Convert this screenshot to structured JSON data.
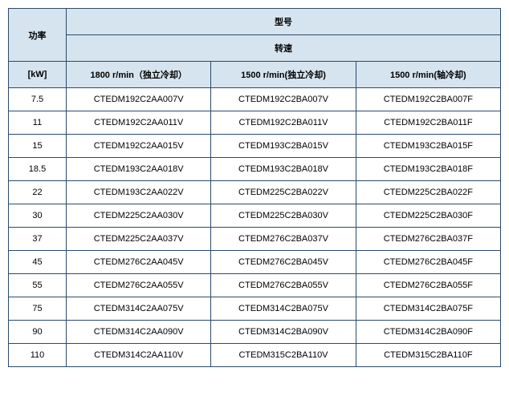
{
  "header": {
    "power": "功率",
    "model": "型号",
    "speed": "转速",
    "unit": "[kW]",
    "col1": "1800 r/min（独立冷却）",
    "col2": "1500 r/min(独立冷却)",
    "col3": "1500 r/min(轴冷却)"
  },
  "rows": [
    {
      "kw": "7.5",
      "c1": "CTEDM192C2AA007V",
      "c2": "CTEDM192C2BA007V",
      "c3": "CTEDM192C2BA007F"
    },
    {
      "kw": "11",
      "c1": "CTEDM192C2AA011V",
      "c2": "CTEDM192C2BA011V",
      "c3": "CTEDM192C2BA011F"
    },
    {
      "kw": "15",
      "c1": "CTEDM192C2AA015V",
      "c2": "CTEDM193C2BA015V",
      "c3": "CTEDM193C2BA015F"
    },
    {
      "kw": "18.5",
      "c1": "CTEDM193C2AA018V",
      "c2": "CTEDM193C2BA018V",
      "c3": "CTEDM193C2BA018F"
    },
    {
      "kw": "22",
      "c1": "CTEDM193C2AA022V",
      "c2": "CTEDM225C2BA022V",
      "c3": "CTEDM225C2BA022F"
    },
    {
      "kw": "30",
      "c1": "CTEDM225C2AA030V",
      "c2": "CTEDM225C2BA030V",
      "c3": "CTEDM225C2BA030F"
    },
    {
      "kw": "37",
      "c1": "CTEDM225C2AA037V",
      "c2": "CTEDM276C2BA037V",
      "c3": "CTEDM276C2BA037F"
    },
    {
      "kw": "45",
      "c1": "CTEDM276C2AA045V",
      "c2": "CTEDM276C2BA045V",
      "c3": "CTEDM276C2BA045F"
    },
    {
      "kw": "55",
      "c1": "CTEDM276C2AA055V",
      "c2": "CTEDM276C2BA055V",
      "c3": "CTEDM276C2BA055F"
    },
    {
      "kw": "75",
      "c1": "CTEDM314C2AA075V",
      "c2": "CTEDM314C2BA075V",
      "c3": "CTEDM314C2BA075F"
    },
    {
      "kw": "90",
      "c1": "CTEDM314C2AA090V",
      "c2": "CTEDM314C2BA090V",
      "c3": "CTEDM314C2BA090F"
    },
    {
      "kw": "110",
      "c1": "CTEDM314C2AA110V",
      "c2": "CTEDM315C2BA110V",
      "c3": "CTEDM315C2BA110F"
    }
  ]
}
